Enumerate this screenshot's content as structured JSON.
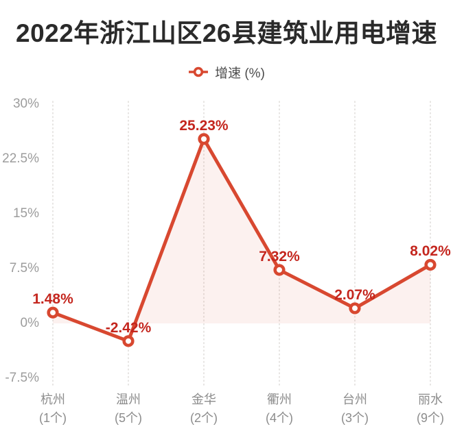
{
  "title": "2022年浙江山区26县建筑业用电增速",
  "legend": {
    "label": "增速 (%)"
  },
  "colors": {
    "line": "#d84830",
    "marker_fill": "#ffffff",
    "point_label": "#c4261e",
    "area": "rgba(216,72,48,0.08)",
    "grid": "#dcd9d6",
    "title_text": "#2a2a2a",
    "axis_text": "#9c9c9c",
    "category_text": "#8c8c8c",
    "legend_text": "#4c4c4c"
  },
  "chart_data": {
    "type": "line",
    "title": "2022年浙江山区26县建筑业用电增速",
    "series_name": "增速 (%)",
    "categories": [
      "杭州",
      "温州",
      "金华",
      "衢州",
      "台州",
      "丽水"
    ],
    "category_subs": [
      "(1个)",
      "(5个)",
      "(2个)",
      "(4个)",
      "(3个)",
      "(9个)"
    ],
    "values": [
      1.48,
      -2.42,
      25.23,
      7.32,
      2.07,
      8.02
    ],
    "point_labels": [
      "1.48%",
      "-2.42%",
      "25.23%",
      "7.32%",
      "2.07%",
      "8.02%"
    ],
    "ytick_values": [
      30,
      22.5,
      15,
      7.5,
      0,
      -7.5
    ],
    "ytick_labels": [
      "30%",
      "22.5%",
      "15%",
      "7.5%",
      "0%",
      "-7.5%"
    ],
    "ylim": [
      -7.5,
      30
    ],
    "xlabel": "",
    "ylabel": "",
    "grid": "vertical-dotted",
    "legend_position": "top-center",
    "area_fill": true,
    "area_clipped_at_zero": true
  }
}
